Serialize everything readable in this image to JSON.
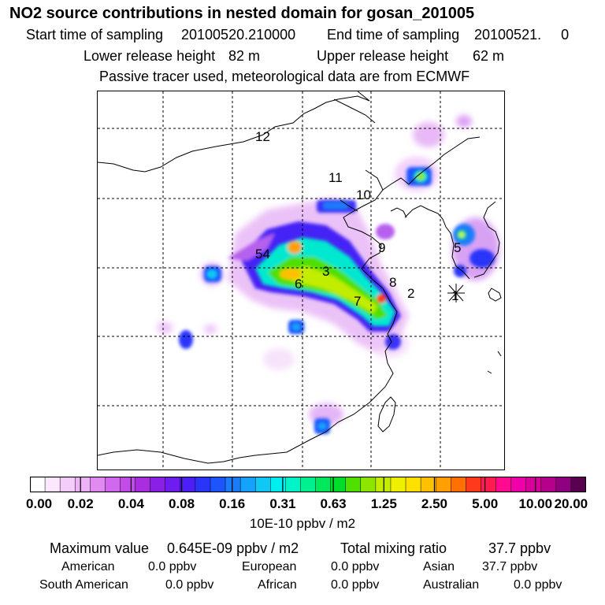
{
  "header": {
    "title": "NO2 source contributions in nested domain for gosan_201005",
    "start_label": "Start time of sampling",
    "start_value": "20100520.210000",
    "end_label": "End time of sampling",
    "end_value": "20100521.     0",
    "lower_label": "Lower release height",
    "lower_value": "82 m",
    "upper_label": "Upper release height",
    "upper_value": "62 m",
    "note": "Passive tracer used, meteorological data are from ECMWF"
  },
  "map": {
    "region_labels": [
      "12",
      "11",
      "10",
      "9",
      "54",
      "3",
      "6",
      "8",
      "7",
      "2",
      "5",
      "1"
    ],
    "receptor_icon": "star-receptor-icon"
  },
  "colorbar": {
    "colors": [
      "#ffffff",
      "#fbe8ff",
      "#f5cdfb",
      "#eeb2f7",
      "#e08af2",
      "#d268ef",
      "#c24be9",
      "#a92ee0",
      "#8a1fe6",
      "#6f1cf0",
      "#4b1ff5",
      "#2a35fa",
      "#1c55fb",
      "#1a7cfb",
      "#14a2fa",
      "#10c8f6",
      "#00eef0",
      "#00f4c8",
      "#00f090",
      "#00e85c",
      "#00dd2a",
      "#50e000",
      "#8ee600",
      "#c2ec00",
      "#eef000",
      "#ffe000",
      "#ffc000",
      "#ffa000",
      "#ff7000",
      "#ff3a1a",
      "#ff1a50",
      "#ff0a90",
      "#f000a8",
      "#d8009a",
      "#b4008c",
      "#8e0080",
      "#5a0050"
    ],
    "ticks": [
      "0.00",
      "0.02",
      "0.04",
      "0.08",
      "0.16",
      "0.31",
      "0.63",
      "1.25",
      "2.50",
      "5.00",
      "10.00",
      "20.00"
    ],
    "unit": "10E-10 ppbv / m2"
  },
  "stats": {
    "max_label": "Maximum value",
    "max_value": "0.645E-09 ppbv / m2",
    "total_label": "Total mixing ratio",
    "total_value": "37.7 ppbv",
    "sources": [
      {
        "name": "American",
        "value": "0.0 ppbv"
      },
      {
        "name": "European",
        "value": "0.0 ppbv"
      },
      {
        "name": "Asian",
        "value": "37.7 ppbv"
      },
      {
        "name": "South American",
        "value": "0.0 ppbv"
      },
      {
        "name": "African",
        "value": "0.0 ppbv"
      },
      {
        "name": "Australian",
        "value": "0.0 ppbv"
      }
    ]
  }
}
